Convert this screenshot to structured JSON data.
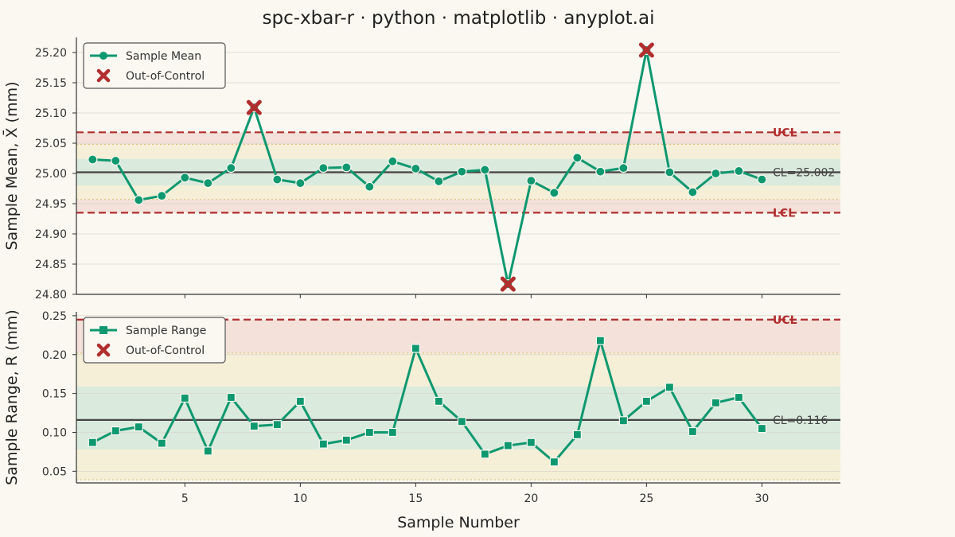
{
  "chart_data": {
    "title": "spc-xbar-r · python · matplotlib · anyplot.ai",
    "xlabel": "Sample Number",
    "samples": [
      1,
      2,
      3,
      4,
      5,
      6,
      7,
      8,
      9,
      10,
      11,
      12,
      13,
      14,
      15,
      16,
      17,
      18,
      19,
      20,
      21,
      22,
      23,
      24,
      25,
      26,
      27,
      28,
      29,
      30
    ],
    "x_ticks": [
      5,
      10,
      15,
      20,
      25,
      30
    ],
    "x_ticks_text": [
      "5",
      "10",
      "15",
      "20",
      "25",
      "30"
    ],
    "xlim": [
      0.3,
      33.4
    ],
    "charts": [
      {
        "type": "line",
        "ylabel": "Sample Mean, X̄ (mm)",
        "ylim": [
          24.8,
          25.225
        ],
        "y_ticks": [
          24.8,
          24.85,
          24.9,
          24.95,
          25.0,
          25.05,
          25.1,
          25.15,
          25.2
        ],
        "y_ticks_text": [
          "24.80",
          "24.85",
          "24.90",
          "24.95",
          "25.00",
          "25.05",
          "25.10",
          "25.15",
          "25.20"
        ],
        "series": [
          {
            "name": "Sample Mean",
            "values": [
              25.023,
              25.021,
              24.956,
              24.963,
              24.993,
              24.984,
              25.009,
              25.109,
              24.99,
              24.984,
              25.009,
              25.01,
              24.978,
              25.02,
              25.008,
              24.987,
              25.003,
              25.006,
              24.817,
              24.988,
              24.968,
              25.026,
              25.003,
              25.009,
              25.204,
              25.002,
              24.969,
              25.0,
              25.004,
              24.99
            ]
          }
        ],
        "out_of_control": {
          "name": "Out-of-Control",
          "indices": [
            8,
            19,
            25
          ]
        },
        "center_line": 25.002,
        "ucl": 25.068,
        "lcl": 24.935,
        "warning_upper": 25.048,
        "warning_lower": 24.957,
        "zone_c": [
          24.98,
          25.024
        ],
        "labels": {
          "ucl": "UCL",
          "lcl": "LCL",
          "cl": "CL=25.002"
        },
        "marker": "circle"
      },
      {
        "type": "line",
        "ylabel": "Sample Range, R (mm)",
        "ylim": [
          0.035,
          0.255
        ],
        "y_ticks": [
          0.05,
          0.1,
          0.15,
          0.2,
          0.25
        ],
        "y_ticks_text": [
          "0.05",
          "0.10",
          "0.15",
          "0.20",
          "0.25"
        ],
        "series": [
          {
            "name": "Sample Range",
            "values": [
              0.087,
              0.102,
              0.107,
              0.086,
              0.144,
              0.076,
              0.145,
              0.108,
              0.11,
              0.14,
              0.085,
              0.09,
              0.1,
              0.1,
              0.208,
              0.14,
              0.114,
              0.072,
              0.083,
              0.087,
              0.062,
              0.097,
              0.218,
              0.115,
              0.14,
              0.158,
              0.101,
              0.138,
              0.145,
              0.105
            ]
          }
        ],
        "out_of_control": {
          "name": "Out-of-Control",
          "indices": []
        },
        "center_line": 0.116,
        "ucl": 0.245,
        "lcl": null,
        "warning_upper": 0.202,
        "warning_lower": 0.039,
        "zone_c": [
          0.078,
          0.159
        ],
        "labels": {
          "ucl": "UCL",
          "lcl": "",
          "cl": "CL=0.116"
        },
        "marker": "square"
      }
    ],
    "colors": {
      "line": "#0e9870",
      "out_of_control": "#b22e2e",
      "center": "#444444",
      "limit": "#b22e2e",
      "warning": "#e0c27a",
      "zone_green": "#cfe6d6",
      "zone_red": "#f0d9d2",
      "zone_yellow": "#f3eccd"
    },
    "grid": true,
    "legend_position": "top-left"
  }
}
